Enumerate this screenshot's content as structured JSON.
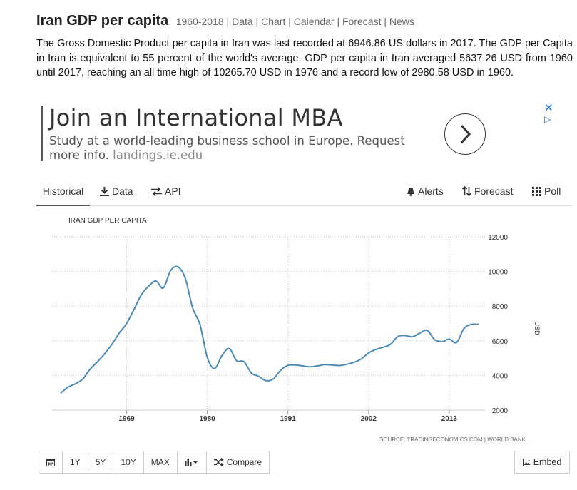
{
  "header": {
    "title": "Iran GDP per capita",
    "links": [
      "1960-2018",
      "Data",
      "Chart",
      "Calendar",
      "Forecast",
      "News"
    ],
    "separator": " | "
  },
  "description": "The Gross Domestic Product per capita in Iran was last recorded at 6946.86 US dollars in 2017. The GDP per Capita in Iran is equivalent to 55 percent of the world's average. GDP per capita in Iran averaged 5637.26 USD from 1960 until 2017, reaching an all time high of 10265.70 USD in 1976 and a record low of 2980.58 USD in 1960.",
  "ad": {
    "headline": "Join an International MBA",
    "body": "Study at a world-leading business school in Europe. Request more info.",
    "url": "landings.ie.edu",
    "close_glyph": "✕",
    "adchoices_glyph": "▷",
    "arrow_icon": "chevron-right-icon"
  },
  "tabs": {
    "left": [
      {
        "label": "Historical",
        "icon": "",
        "active": true
      },
      {
        "label": "Data",
        "icon": "download-icon"
      },
      {
        "label": "API",
        "icon": "exchange-icon"
      }
    ],
    "right": [
      {
        "label": "Alerts",
        "icon": "bell-icon"
      },
      {
        "label": "Forecast",
        "icon": "sort-arrows-icon"
      },
      {
        "label": "Poll",
        "icon": "grid-icon"
      }
    ]
  },
  "chart_data": {
    "type": "line",
    "title": "IRAN GDP PER CAPITA",
    "ylabel": "USD",
    "source": "SOURCE: TRADINGECONOMICS.COM | WORLD BANK",
    "x_ticks": [
      "1969",
      "1980",
      "1991",
      "2002",
      "2013"
    ],
    "y_ticks": [
      "12000",
      "10000",
      "8000",
      "6000",
      "4000",
      "2000"
    ],
    "xlim": [
      1960,
      2017
    ],
    "ylim": [
      2000,
      12000
    ],
    "grid": true,
    "line_color": "#4a8ab5",
    "series": [
      {
        "x": [
          1960,
          1961,
          1962,
          1963,
          1964,
          1965,
          1966,
          1967,
          1968,
          1969,
          1970,
          1971,
          1972,
          1973,
          1974,
          1975,
          1976,
          1977,
          1978,
          1979,
          1980,
          1981,
          1982,
          1983,
          1984,
          1985,
          1986,
          1987,
          1988,
          1989,
          1990,
          1991,
          1992,
          1993,
          1994,
          1995,
          1996,
          1997,
          1998,
          1999,
          2000,
          2001,
          2002,
          2003,
          2004,
          2005,
          2006,
          2007,
          2008,
          2009,
          2010,
          2011,
          2012,
          2013,
          2014,
          2015,
          2016,
          2017
        ],
        "values": [
          2981,
          3320,
          3520,
          3780,
          4350,
          4780,
          5250,
          5800,
          6450,
          7000,
          7800,
          8650,
          9150,
          9450,
          9050,
          10050,
          10266,
          9600,
          7900,
          6950,
          5050,
          4400,
          5150,
          5550,
          4850,
          4800,
          4150,
          3950,
          3700,
          3800,
          4300,
          4580,
          4600,
          4550,
          4500,
          4550,
          4620,
          4600,
          4570,
          4640,
          4760,
          4950,
          5300,
          5500,
          5630,
          5800,
          6250,
          6300,
          6230,
          6450,
          6600,
          6070,
          5950,
          6100,
          5900,
          6700,
          6947,
          6947
        ]
      }
    ]
  },
  "toolbar": {
    "items": [
      "1Y",
      "5Y",
      "10Y",
      "MAX"
    ],
    "calendar_icon": "calendar-icon",
    "chart_type_icon": "bar-chart-icon",
    "compare_label": "Compare",
    "embed_label": "Embed"
  }
}
